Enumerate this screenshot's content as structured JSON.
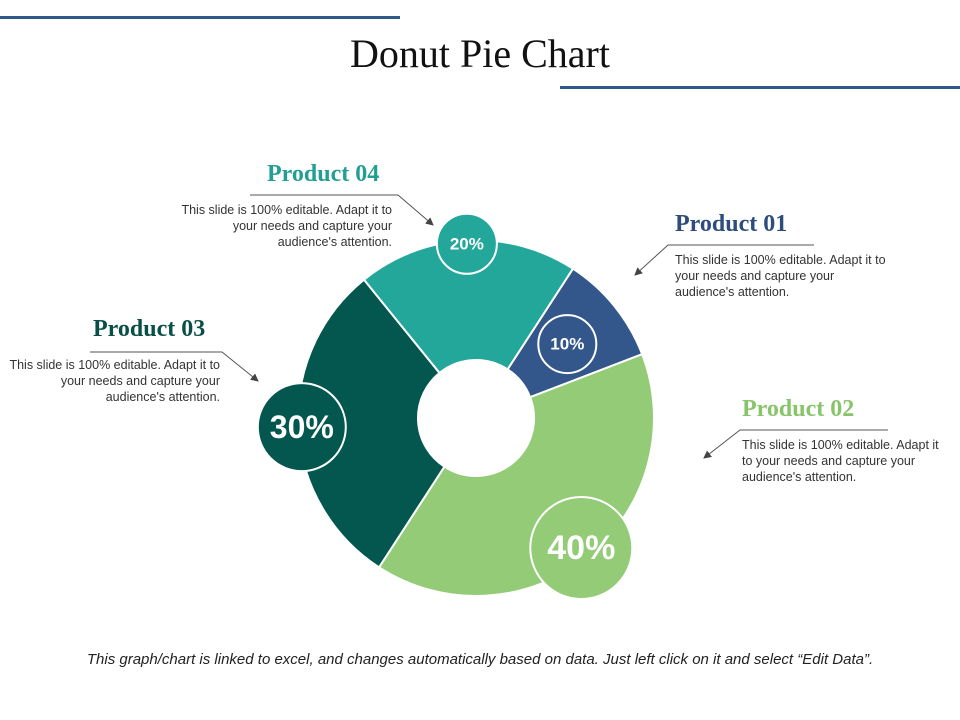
{
  "title": "Donut Pie Chart",
  "footnote": "This graph/chart is linked to excel, and changes automatically based on data. Just left click on it and select “Edit Data”.",
  "chart_data": {
    "type": "pie",
    "variant": "donut",
    "categories": [
      "Product 01",
      "Product 02",
      "Product 03",
      "Product 04"
    ],
    "values": [
      10,
      40,
      30,
      20
    ],
    "value_labels": [
      "10%",
      "40%",
      "30%",
      "20%"
    ],
    "colors": [
      "#33578a",
      "#93cb76",
      "#03574f",
      "#22a79a"
    ]
  },
  "labels": [
    {
      "name": "Product 01",
      "color": "#2e4c7c",
      "desc": "This slide is 100% editable. Adapt it to your needs and capture your audience's attention."
    },
    {
      "name": "Product 02",
      "color": "#88c46a",
      "desc": "This slide is 100% editable. Adapt it to your needs and capture your audience's attention."
    },
    {
      "name": "Product 03",
      "color": "#0a4f47",
      "desc": "This slide is 100% editable. Adapt it to your needs and capture your audience's attention."
    },
    {
      "name": "Product 04",
      "color": "#229e92",
      "desc": "This slide is 100% editable. Adapt it to your needs and capture your audience's attention."
    }
  ]
}
